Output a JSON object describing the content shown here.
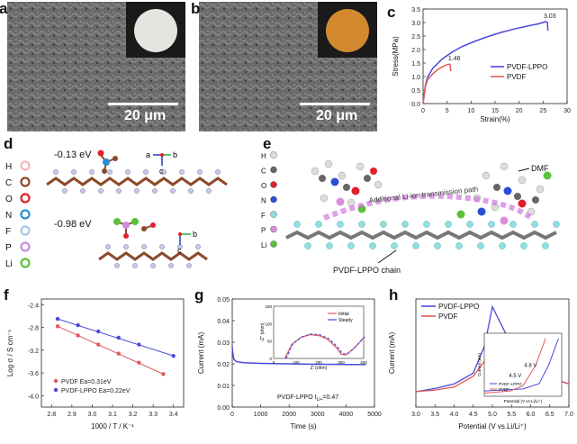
{
  "panels": {
    "a": {
      "label": "a",
      "scale_text": "20 μm",
      "disc_color": "#e6e4df"
    },
    "b": {
      "label": "b",
      "scale_text": "20 μm",
      "disc_color": "#d38a2e"
    },
    "c": {
      "label": "c"
    },
    "d": {
      "label": "d",
      "energy1": "-0.13 eV",
      "energy2": "-0.98 eV",
      "legend": [
        {
          "name": "H",
          "color": "#f2b8b8"
        },
        {
          "name": "C",
          "color": "#8b4a2b"
        },
        {
          "name": "O",
          "color": "#e0202a"
        },
        {
          "name": "N",
          "color": "#2a8fd6"
        },
        {
          "name": "F",
          "color": "#a8c8e8"
        },
        {
          "name": "P",
          "color": "#c88fd8"
        },
        {
          "name": "Li",
          "color": "#59c23a"
        }
      ],
      "axes1": {
        "a": "a",
        "b": "b",
        "c": "c"
      },
      "axes2": {
        "b": "b",
        "c": "c"
      }
    },
    "e": {
      "label": "e",
      "dmf": "DMF",
      "path_text": "Additional Li-ion transmission path",
      "chain_text": "PVDF-LPPO chain",
      "legend": [
        {
          "name": "H",
          "color": "#dddddd"
        },
        {
          "name": "C",
          "color": "#666666"
        },
        {
          "name": "O",
          "color": "#e0202a"
        },
        {
          "name": "N",
          "color": "#2a4fd6"
        },
        {
          "name": "F",
          "color": "#8fe0e0"
        },
        {
          "name": "P",
          "color": "#d88fd8"
        },
        {
          "name": "Li",
          "color": "#59c23a"
        }
      ]
    },
    "f": {
      "label": "f"
    },
    "g": {
      "label": "g",
      "annotation": "PVDF-LPPO  t",
      "annotation_sub": "Li+",
      "annotation_val": "=0.47"
    },
    "h": {
      "label": "h"
    }
  },
  "chart_data": [
    {
      "id": "c",
      "type": "line",
      "xlabel": "Strain(%)",
      "ylabel": "Stress(MPa)",
      "xlim": [
        0,
        30
      ],
      "ylim": [
        0,
        3.5
      ],
      "xticks": [
        "0",
        "5",
        "10",
        "15",
        "20",
        "25",
        "30"
      ],
      "yticks": [
        "0.0",
        "0.5",
        "1.0",
        "1.5",
        "2.0",
        "2.5",
        "3.0",
        "3.5"
      ],
      "series": [
        {
          "name": "PVDF-LPPO",
          "color": "#4a4adb",
          "x": [
            0,
            0.5,
            1,
            2,
            4,
            6,
            8,
            10,
            13,
            16,
            19,
            22,
            24,
            25.5,
            25.9,
            26.0
          ],
          "y": [
            0,
            0.7,
            1.0,
            1.3,
            1.65,
            1.9,
            2.1,
            2.25,
            2.45,
            2.62,
            2.76,
            2.88,
            2.95,
            3.03,
            3.0,
            2.7
          ]
        },
        {
          "name": "PVDF",
          "color": "#e05a5a",
          "x": [
            0,
            0.5,
            1,
            2,
            3,
            4,
            5,
            5.6,
            5.8
          ],
          "y": [
            0,
            0.65,
            0.9,
            1.1,
            1.25,
            1.36,
            1.44,
            1.46,
            1.2
          ]
        }
      ],
      "annotations": [
        {
          "text": "3.03",
          "x": 25.5,
          "y": 3.03
        },
        {
          "text": "1.46",
          "x": 5.6,
          "y": 1.46
        }
      ]
    },
    {
      "id": "f",
      "type": "scatter",
      "xlabel": "1000 / T / K⁻¹",
      "ylabel": "Log σ / S cm⁻¹",
      "xlim": [
        2.75,
        3.45
      ],
      "ylim": [
        -4.2,
        -2.3
      ],
      "xticks": [
        "2.8",
        "2.9",
        "3.0",
        "3.1",
        "3.2",
        "3.3",
        "3.4"
      ],
      "yticks": [
        "-2.4",
        "-2.8",
        "-3.2",
        "-3.6",
        "-4.0"
      ],
      "series": [
        {
          "name": "PVDF Ea=0.31eV",
          "color": "#e05a5a",
          "x": [
            2.83,
            2.93,
            3.03,
            3.13,
            3.23,
            3.35
          ],
          "y": [
            -2.78,
            -2.94,
            -3.1,
            -3.26,
            -3.42,
            -3.62
          ]
        },
        {
          "name": "PVDF-LPPO Ea=0.22eV",
          "color": "#4a4adb",
          "x": [
            2.83,
            2.93,
            3.03,
            3.13,
            3.23,
            3.4
          ],
          "y": [
            -2.65,
            -2.76,
            -2.87,
            -2.98,
            -3.1,
            -3.3
          ]
        }
      ]
    },
    {
      "id": "g",
      "type": "line",
      "xlabel": "Time (s)",
      "ylabel": "Current (mA)",
      "xlim": [
        0,
        5000
      ],
      "ylim": [
        0.0,
        0.05
      ],
      "xticks": [
        "0",
        "1000",
        "2000",
        "3000",
        "4000",
        "5000"
      ],
      "yticks": [
        "0.00",
        "0.01",
        "0.02",
        "0.03",
        "0.04",
        "0.05"
      ],
      "series": [
        {
          "name": "current",
          "color": "#4a4adb",
          "x": [
            0,
            20,
            60,
            150,
            400,
            1000,
            2000,
            3000,
            4000,
            4700
          ],
          "y": [
            0.028,
            0.025,
            0.022,
            0.021,
            0.0205,
            0.0202,
            0.02,
            0.0198,
            0.0197,
            0.0197
          ]
        }
      ],
      "inset": {
        "xlabel": "Z' (ohm)",
        "ylabel": "-Z'' (ohm)",
        "xlim": [
          0,
          400
        ],
        "ylim": [
          0,
          150
        ],
        "xticks": [
          "0",
          "100",
          "200",
          "300",
          "400"
        ],
        "yticks": [
          "0",
          "50",
          "100",
          "150"
        ],
        "series": [
          {
            "name": "Initial",
            "color": "#e05a5a",
            "x": [
              50,
              80,
              120,
              160,
              200,
              240,
              280,
              300,
              320,
              350,
              380,
              400
            ],
            "y": [
              0,
              40,
              60,
              68,
              66,
              55,
              30,
              12,
              10,
              25,
              45,
              60
            ]
          },
          {
            "name": "Steady",
            "color": "#4a4adb",
            "x": [
              55,
              85,
              125,
              165,
              205,
              245,
              285,
              305,
              325,
              355,
              385,
              405
            ],
            "y": [
              0,
              42,
              62,
              70,
              68,
              57,
              32,
              14,
              12,
              28,
              48,
              62
            ]
          }
        ]
      }
    },
    {
      "id": "h",
      "type": "line",
      "xlabel": "Potential (V vs.Li/Li⁺)",
      "ylabel": "Current (mA)",
      "xlim": [
        3.0,
        7.0
      ],
      "ylim": [
        -0.1,
        0.6
      ],
      "xticks": [
        "3.0",
        "3.5",
        "4.0",
        "4.5",
        "5.0",
        "5.5",
        "6.0",
        "6.5",
        "7.0"
      ],
      "series": [
        {
          "name": "PVDF-LPPO",
          "color": "#4a4adb",
          "x": [
            3.0,
            3.5,
            4.0,
            4.5,
            4.8,
            5.0,
            5.2,
            5.5,
            5.8,
            6.0,
            6.3,
            6.6,
            7.0
          ],
          "y": [
            0.0,
            0.02,
            0.05,
            0.12,
            0.3,
            0.55,
            0.45,
            0.3,
            0.22,
            0.15,
            0.1,
            0.08,
            0.05
          ]
        },
        {
          "name": "PVDF",
          "color": "#e05a5a",
          "x": [
            3.0,
            3.5,
            4.0,
            4.5,
            4.8,
            5.0,
            5.2,
            5.5,
            5.8,
            6.0,
            6.3,
            6.6,
            7.0
          ],
          "y": [
            0.0,
            0.01,
            0.03,
            0.1,
            0.2,
            0.3,
            0.32,
            0.25,
            0.2,
            0.15,
            0.1,
            0.08,
            0.05
          ]
        }
      ],
      "inset": {
        "xlabel": "Potential (V vs.Li/Li⁺)",
        "ylabel": "Current (mA)",
        "xlim": [
          4.0,
          5.2
        ],
        "ylim": [
          0,
          0.6
        ],
        "annotations": [
          "4.8 V",
          "4.5 V"
        ],
        "legend": [
          "PVDF-LPPO",
          "PVDF"
        ]
      }
    }
  ]
}
